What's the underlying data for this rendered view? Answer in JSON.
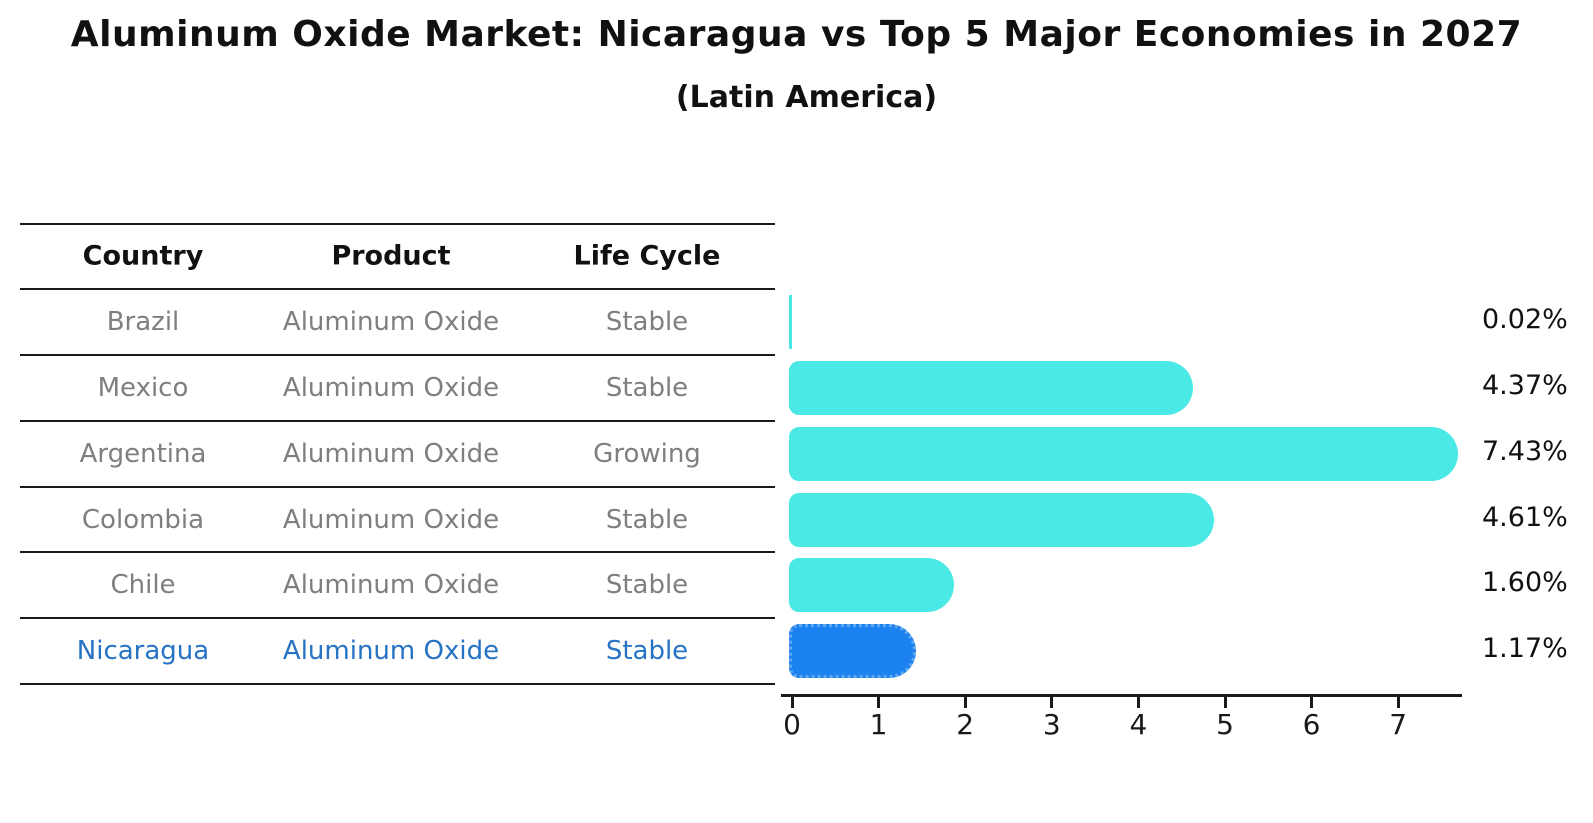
{
  "title": "Aluminum Oxide Market: Nicaragua vs Top 5 Major Economies in 2027",
  "subtitle": "(Latin America)",
  "table": {
    "headers": [
      "Country",
      "Product",
      "Life Cycle"
    ],
    "rows": [
      {
        "country": "Brazil",
        "product": "Aluminum Oxide",
        "life_cycle": "Stable",
        "highlight": false
      },
      {
        "country": "Mexico",
        "product": "Aluminum Oxide",
        "life_cycle": "Stable",
        "highlight": false
      },
      {
        "country": "Argentina",
        "product": "Aluminum Oxide",
        "life_cycle": "Growing",
        "highlight": false
      },
      {
        "country": "Colombia",
        "product": "Aluminum Oxide",
        "life_cycle": "Stable",
        "highlight": false
      },
      {
        "country": "Chile",
        "product": "Aluminum Oxide",
        "life_cycle": "Stable",
        "highlight": false
      },
      {
        "country": "Nicaragua",
        "product": "Aluminum Oxide",
        "life_cycle": "Stable",
        "highlight": true
      }
    ]
  },
  "chart_data": {
    "type": "bar",
    "orientation": "horizontal",
    "categories": [
      "Brazil",
      "Mexico",
      "Argentina",
      "Colombia",
      "Chile",
      "Nicaragua"
    ],
    "values": [
      0.02,
      4.37,
      7.43,
      4.61,
      1.6,
      1.17
    ],
    "value_labels": [
      "0.02%",
      "4.37%",
      "7.43%",
      "4.61%",
      "1.60%",
      "1.17%"
    ],
    "xticks": [
      "0",
      "1",
      "2",
      "3",
      "4",
      "5",
      "6",
      "7"
    ],
    "xlim": [
      0,
      7.75
    ],
    "grid": false,
    "legend": false,
    "highlight_index": 5
  },
  "colors": {
    "bar": "#4ae9e6",
    "highlight_bar": "#1b82f0",
    "highlight_edge": "#5fa8f2",
    "highlight_text": "#2673c4",
    "row_text": "#7f7f7f",
    "axis": "#1a1a1a"
  }
}
